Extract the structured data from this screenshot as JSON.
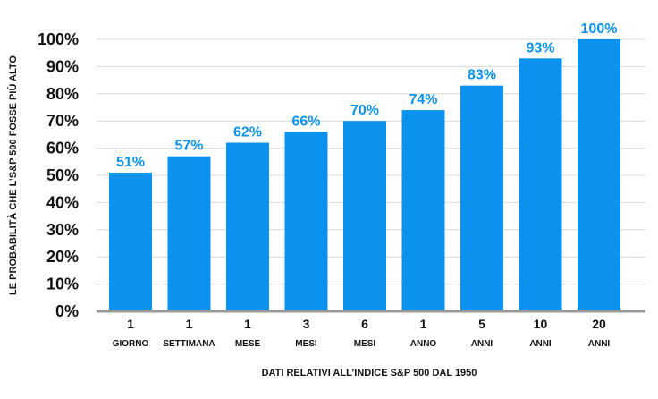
{
  "chart_data": {
    "type": "bar",
    "title": "",
    "xlabel": "DATI RELATIVI ALL’INDICE S&P 500 DAL 1950",
    "ylabel": "LE PROBABILITÀ CHE L’S&P 500 FOSSE PIÙ ALTO",
    "ylim": [
      0,
      100
    ],
    "yticks": [
      "0%",
      "10%",
      "20%",
      "30%",
      "40%",
      "50%",
      "60%",
      "70%",
      "80%",
      "90%",
      "100%"
    ],
    "grid": true,
    "categories": [
      {
        "num": "1",
        "unit": "GIORNO"
      },
      {
        "num": "1",
        "unit": "SETTIMANA"
      },
      {
        "num": "1",
        "unit": "MESE"
      },
      {
        "num": "3",
        "unit": "MESI"
      },
      {
        "num": "6",
        "unit": "MESI"
      },
      {
        "num": "1",
        "unit": "ANNO"
      },
      {
        "num": "5",
        "unit": "ANNI"
      },
      {
        "num": "10",
        "unit": "ANNI"
      },
      {
        "num": "20",
        "unit": "ANNI"
      }
    ],
    "values": [
      51,
      57,
      62,
      66,
      70,
      74,
      83,
      93,
      100
    ],
    "data_labels": [
      "51%",
      "57%",
      "62%",
      "66%",
      "70%",
      "74%",
      "83%",
      "93%",
      "100%"
    ],
    "bar_color": "#0a92ee"
  }
}
